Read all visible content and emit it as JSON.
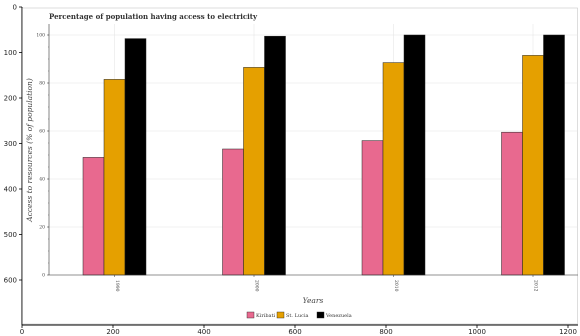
{
  "chart_data": {
    "type": "bar",
    "title": "Percentage of population having access to electricity",
    "xlabel": "Years",
    "ylabel": "Access to resources (% of population)",
    "categories": [
      "1990",
      "2000",
      "2010",
      "2012"
    ],
    "series": [
      {
        "name": "Kiribati",
        "color": "#e8698f",
        "values": [
          49,
          52.5,
          56,
          59.5
        ]
      },
      {
        "name": "St. Lucia",
        "color": "#e5a000",
        "values": [
          81.5,
          86.5,
          88.5,
          91.5
        ]
      },
      {
        "name": "Venezuela",
        "color": "#000000",
        "values": [
          98.5,
          99.5,
          100,
          100
        ]
      }
    ],
    "ylim": [
      0,
      100
    ],
    "yticks": [
      0,
      20,
      40,
      60,
      80,
      100
    ],
    "legend_position": "bottom-center",
    "grid": true
  },
  "outer_axes": {
    "x_ticks": [
      "0",
      "200",
      "400",
      "600",
      "800",
      "1000",
      "1200"
    ],
    "y_ticks": [
      "0",
      "100",
      "200",
      "300",
      "400",
      "500",
      "600"
    ]
  }
}
